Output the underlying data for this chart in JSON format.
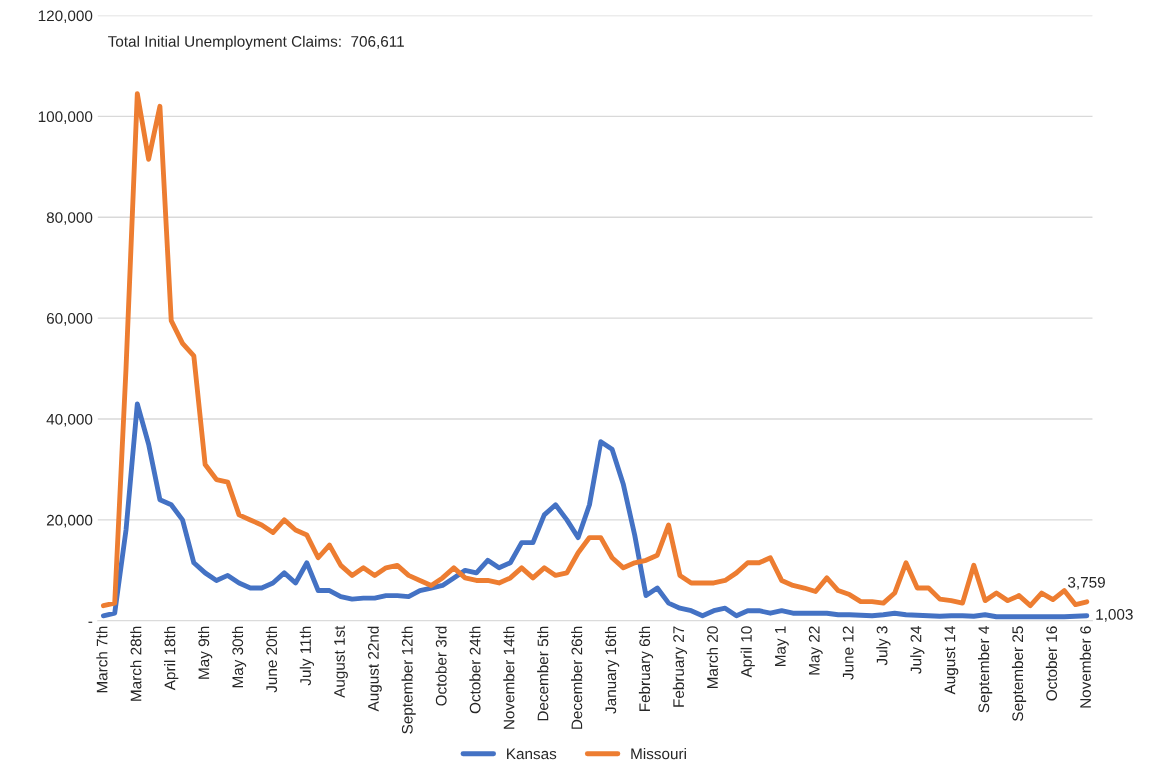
{
  "chart_data": {
    "type": "line",
    "categories": [
      "March 7th",
      null,
      null,
      "March 28th",
      null,
      null,
      "April 18th",
      null,
      null,
      "May 9th",
      null,
      null,
      "May 30th",
      null,
      null,
      "June 20th",
      null,
      null,
      "July 11th",
      null,
      null,
      "August 1st",
      null,
      null,
      "August 22nd",
      null,
      null,
      "September 12th",
      null,
      null,
      "October 3rd",
      null,
      null,
      "October 24th",
      null,
      null,
      "November 14th",
      null,
      null,
      "December 5th",
      null,
      null,
      "December 26th",
      null,
      null,
      "January 16th",
      null,
      null,
      "February 6th",
      null,
      null,
      "February 27",
      null,
      null,
      "March 20",
      null,
      null,
      "April 10",
      null,
      null,
      "May 1",
      null,
      null,
      "May 22",
      null,
      null,
      "June 12",
      null,
      null,
      "July 3",
      null,
      null,
      "July 24",
      null,
      null,
      "August 14",
      null,
      null,
      "September 4",
      null,
      null,
      "September 25",
      null,
      null,
      "October 16",
      null,
      null,
      "November 6"
    ],
    "series": [
      {
        "name": "Kansas",
        "color": "#4472c4",
        "values": [
          1000,
          1500,
          18000,
          43000,
          35000,
          24000,
          23000,
          20000,
          11500,
          9500,
          8000,
          9000,
          7500,
          6500,
          6500,
          7500,
          9500,
          7500,
          11500,
          6000,
          6000,
          4800,
          4300,
          4500,
          4500,
          5000,
          5000,
          4800,
          6000,
          6500,
          7000,
          8500,
          10000,
          9500,
          12000,
          10500,
          11500,
          15500,
          15500,
          21000,
          23000,
          20000,
          16500,
          23000,
          35500,
          34000,
          27000,
          17000,
          5000,
          6500,
          3500,
          2500,
          2000,
          1000,
          2000,
          2500,
          1000,
          2000,
          2000,
          1500,
          2000,
          1500,
          1500,
          1500,
          1500,
          1200,
          1200,
          1100,
          1000,
          1200,
          1500,
          1200,
          1100,
          1000,
          900,
          1000,
          1000,
          900,
          1200,
          800,
          800,
          800,
          800,
          800,
          800,
          800,
          900,
          1003
        ],
        "value_labels": [
          null,
          null,
          null,
          null,
          null,
          null,
          null,
          null,
          null,
          null,
          null,
          null,
          null,
          null,
          null,
          null,
          null,
          null,
          null,
          null,
          null,
          null,
          null,
          null,
          null,
          null,
          null,
          null,
          null,
          null,
          null,
          null,
          null,
          null,
          null,
          null,
          null,
          null,
          null,
          null,
          null,
          null,
          null,
          null,
          null,
          null,
          null,
          null,
          null,
          null,
          null,
          null,
          null,
          null,
          null,
          null,
          null,
          null,
          null,
          null,
          null,
          null,
          null,
          null,
          null,
          null,
          null,
          null,
          null,
          null,
          null,
          null,
          null,
          null,
          null,
          null,
          null,
          null,
          null,
          null,
          null,
          null,
          null,
          null,
          null,
          null,
          null,
          "1,003"
        ]
      },
      {
        "name": "Missouri",
        "color": "#ed7d31",
        "values": [
          3000,
          3500,
          50000,
          104500,
          91500,
          102000,
          59500,
          55000,
          52500,
          31000,
          28000,
          27500,
          21000,
          20000,
          19000,
          17500,
          20000,
          18000,
          17000,
          12500,
          15000,
          11000,
          9000,
          10500,
          9000,
          10500,
          11000,
          9000,
          8000,
          7000,
          8500,
          10500,
          8500,
          8000,
          8000,
          7500,
          8500,
          10500,
          8500,
          10500,
          9000,
          9500,
          13500,
          16500,
          16500,
          12500,
          10500,
          11500,
          12000,
          13000,
          19000,
          9000,
          7500,
          7500,
          7500,
          8000,
          9500,
          11500,
          11500,
          12500,
          8000,
          7000,
          6500,
          5800,
          8500,
          6000,
          5200,
          3800,
          3800,
          3500,
          5500,
          11500,
          6500,
          6500,
          4300,
          4000,
          3500,
          11000,
          4000,
          5500,
          4000,
          5000,
          3000,
          5500,
          4200,
          6000,
          3200,
          3759
        ],
        "value_labels": [
          null,
          null,
          null,
          null,
          null,
          null,
          null,
          null,
          null,
          null,
          null,
          null,
          null,
          null,
          null,
          null,
          null,
          null,
          null,
          null,
          null,
          null,
          null,
          null,
          null,
          null,
          null,
          null,
          null,
          null,
          null,
          null,
          null,
          null,
          null,
          null,
          null,
          null,
          null,
          null,
          null,
          null,
          null,
          null,
          null,
          null,
          null,
          null,
          null,
          null,
          null,
          null,
          null,
          null,
          null,
          null,
          null,
          null,
          null,
          null,
          null,
          null,
          null,
          null,
          null,
          null,
          null,
          null,
          null,
          null,
          null,
          null,
          null,
          null,
          null,
          null,
          null,
          null,
          null,
          null,
          null,
          null,
          null,
          null,
          null,
          null,
          null,
          "3,759"
        ]
      }
    ],
    "ylim": [
      0,
      120000
    ],
    "yticks": [
      {
        "value": 0,
        "label": "-"
      },
      {
        "value": 20000,
        "label": "20,000"
      },
      {
        "value": 40000,
        "label": "40,000"
      },
      {
        "value": 60000,
        "label": "60,000"
      },
      {
        "value": 80000,
        "label": "80,000"
      },
      {
        "value": 100000,
        "label": "100,000"
      },
      {
        "value": 120000,
        "label": "120,000"
      }
    ],
    "annotations": [
      "Total Initial Unemployment Claims:  706,611"
    ],
    "grid": "y",
    "legend": "bottom",
    "marker": "none",
    "line_style": "solid"
  }
}
